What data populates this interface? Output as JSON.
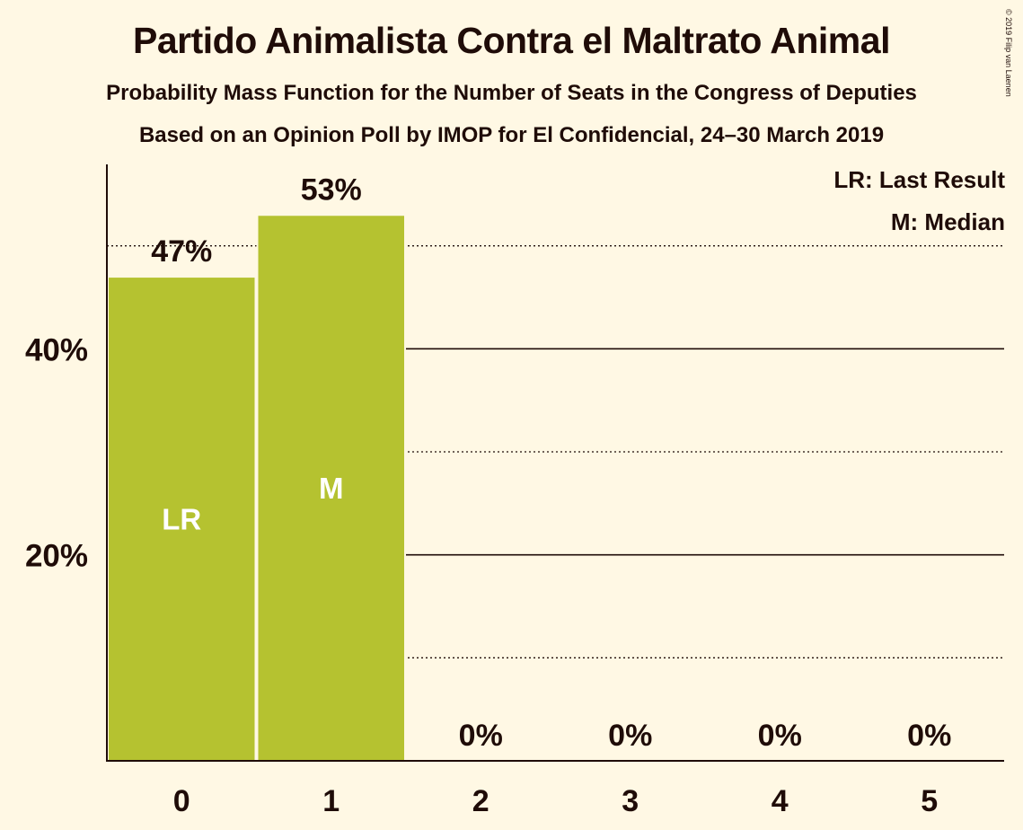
{
  "title": "Partido Animalista Contra el Maltrato Animal",
  "subtitle_1": "Probability Mass Function for the Number of Seats in the Congress of Deputies",
  "subtitle_2": "Based on an Opinion Poll by IMOP for El Confidencial, 24–30 March 2019",
  "copyright": "© 2019 Filip van Laenen",
  "legend": {
    "last_result": "LR: Last Result",
    "median": "M: Median"
  },
  "colors": {
    "bar": "#b5c230",
    "background": "#fff8e4",
    "text": "#1f0c08"
  },
  "chart_data": {
    "type": "bar",
    "categories": [
      "0",
      "1",
      "2",
      "3",
      "4",
      "5"
    ],
    "values": [
      47,
      53,
      0,
      0,
      0,
      0
    ],
    "value_labels": [
      "47%",
      "53%",
      "0%",
      "0%",
      "0%",
      "0%"
    ],
    "bar_markers": [
      "LR",
      "M",
      "",
      "",
      "",
      ""
    ],
    "yticks": [
      {
        "value": 20,
        "label": "20%"
      },
      {
        "value": 40,
        "label": "40%"
      }
    ],
    "dotted_gridlines": [
      10,
      30,
      50
    ],
    "ylim": [
      0,
      58
    ],
    "grid": true,
    "legend_position": "top-right"
  }
}
